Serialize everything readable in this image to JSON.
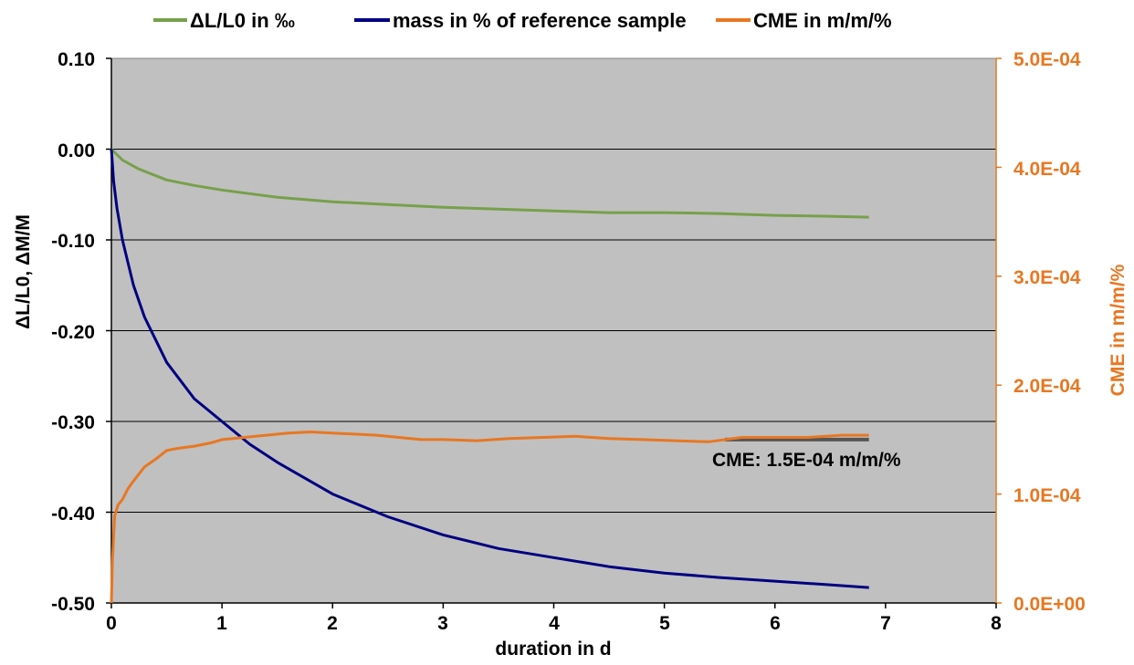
{
  "chart_data": {
    "type": "line",
    "title": "",
    "xlabel": "duration in d",
    "ylabel": "ΔL/L0, ΔM/M",
    "y2label": "CME in m/m/%",
    "xlim": [
      0,
      8
    ],
    "ylim": [
      -0.5,
      0.1
    ],
    "y2lim": [
      0,
      0.0005
    ],
    "x_ticks": [
      "0",
      "1",
      "2",
      "3",
      "4",
      "5",
      "6",
      "7",
      "8"
    ],
    "y_ticks": [
      "0.10",
      "0.00",
      "-0.10",
      "-0.20",
      "-0.30",
      "-0.40",
      "-0.50"
    ],
    "y2_ticks": [
      "5.0E-04",
      "4.0E-04",
      "3.0E-04",
      "2.0E-04",
      "1.0E-04",
      "0.0E+00"
    ],
    "grid": "horizontal",
    "legend_position": "top",
    "background": "#C0C0C0",
    "series": [
      {
        "name": "ΔL/L0 in ‰",
        "color": "#77A04B",
        "axis": "left",
        "x": [
          0,
          0.1,
          0.25,
          0.5,
          0.75,
          1.0,
          1.25,
          1.5,
          2.0,
          2.5,
          3.0,
          3.5,
          4.0,
          4.5,
          5.0,
          5.5,
          6.0,
          6.5,
          6.85
        ],
        "y": [
          0.0,
          -0.012,
          -0.022,
          -0.034,
          -0.04,
          -0.045,
          -0.049,
          -0.053,
          -0.058,
          -0.061,
          -0.064,
          -0.066,
          -0.068,
          -0.07,
          -0.07,
          -0.071,
          -0.073,
          -0.074,
          -0.075
        ]
      },
      {
        "name": "mass in % of reference sample",
        "color": "#000080",
        "axis": "left",
        "x": [
          0,
          0.02,
          0.05,
          0.1,
          0.2,
          0.3,
          0.5,
          0.75,
          1.0,
          1.25,
          1.5,
          2.0,
          2.5,
          3.0,
          3.5,
          4.0,
          4.5,
          5.0,
          5.5,
          6.0,
          6.5,
          6.85
        ],
        "y": [
          0.0,
          -0.035,
          -0.065,
          -0.1,
          -0.15,
          -0.185,
          -0.235,
          -0.275,
          -0.3,
          -0.325,
          -0.345,
          -0.38,
          -0.405,
          -0.425,
          -0.44,
          -0.45,
          -0.46,
          -0.467,
          -0.472,
          -0.476,
          -0.48,
          -0.483
        ]
      },
      {
        "name": "CME in m/m/%",
        "color": "#E87722",
        "axis": "right",
        "x": [
          0,
          0.01,
          0.03,
          0.06,
          0.1,
          0.15,
          0.2,
          0.3,
          0.4,
          0.5,
          0.6,
          0.75,
          0.9,
          1.0,
          1.2,
          1.4,
          1.6,
          1.8,
          2.0,
          2.2,
          2.4,
          2.6,
          2.8,
          3.0,
          3.3,
          3.6,
          3.9,
          4.2,
          4.5,
          4.8,
          5.1,
          5.4,
          5.7,
          6.0,
          6.3,
          6.6,
          6.85
        ],
        "y": [
          0.0,
          4e-05,
          8e-05,
          9e-05,
          9.5e-05,
          0.000105,
          0.000112,
          0.000125,
          0.000132,
          0.00014,
          0.000142,
          0.000144,
          0.000147,
          0.00015,
          0.000152,
          0.000154,
          0.000156,
          0.000157,
          0.000156,
          0.000155,
          0.000154,
          0.000152,
          0.00015,
          0.00015,
          0.000149,
          0.000151,
          0.000152,
          0.000153,
          0.000151,
          0.00015,
          0.000149,
          0.000148,
          0.000152,
          0.000152,
          0.000152,
          0.000154,
          0.000154
        ]
      }
    ],
    "fit_line": {
      "color": "#555555",
      "axis": "right",
      "x": [
        5.55,
        6.85
      ],
      "y": [
        0.00015,
        0.00015
      ]
    },
    "annotation": "CME: 1.5E-04 m/m/%"
  }
}
